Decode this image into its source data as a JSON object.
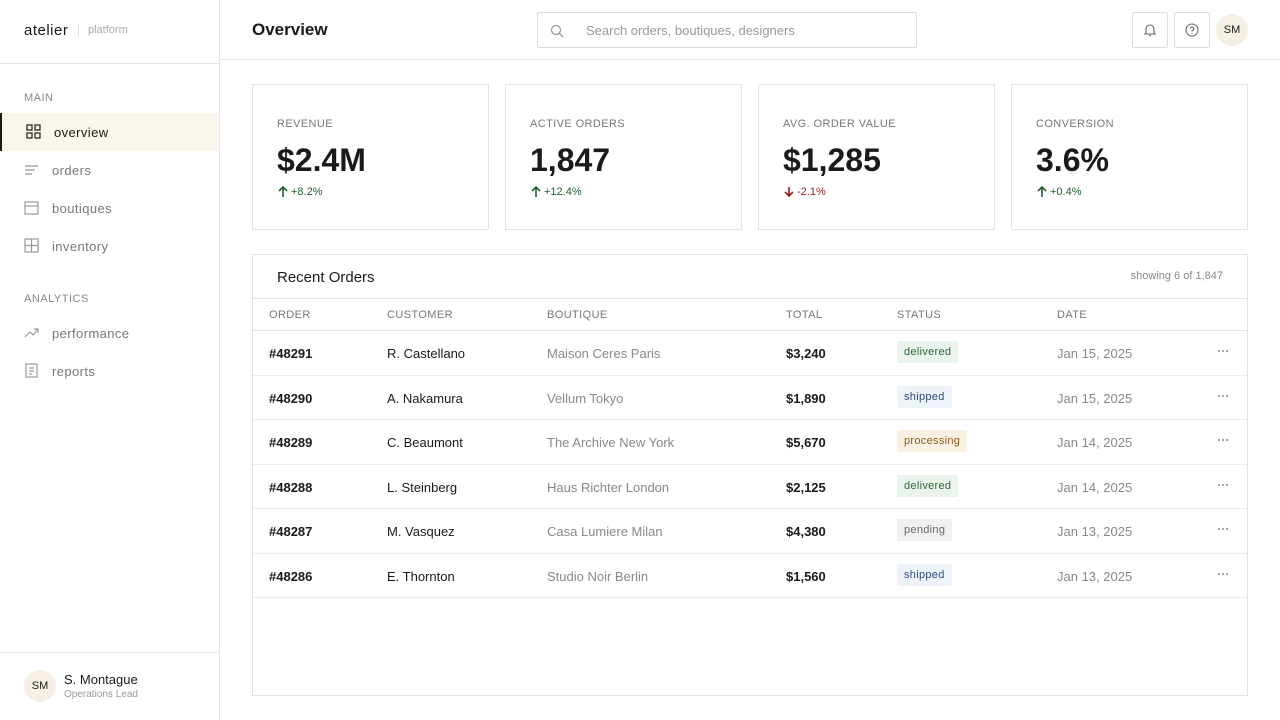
{
  "sidebar": {
    "brand": "atelier",
    "brand_sub": "platform",
    "sections": [
      {
        "label": "MAIN",
        "items": [
          "overview",
          "orders",
          "boutiques",
          "inventory"
        ]
      },
      {
        "label": "ANALYTICS",
        "items": [
          "performance",
          "reports"
        ]
      }
    ],
    "user": {
      "initials": "SM",
      "name": "S. Montague",
      "role": "Operations Lead"
    }
  },
  "header": {
    "title": "Overview",
    "search_placeholder": "Search orders, boutiques, designers",
    "avatar": "SM"
  },
  "kpis": [
    {
      "label": "REVENUE",
      "value": "$2.4M",
      "change": "+8.2%"
    },
    {
      "label": "ACTIVE ORDERS",
      "value": "1,847",
      "change": "+12.4%"
    },
    {
      "label": "AVG. ORDER VALUE",
      "value": "$1,285",
      "change": "-2.1%"
    },
    {
      "label": "CONVERSION",
      "value": "3.6%",
      "change": "+0.4%"
    }
  ],
  "orders": {
    "title": "Recent Orders",
    "count": "showing 6 of 1,847",
    "columns": [
      "ORDER",
      "CUSTOMER",
      "BOUTIQUE",
      "TOTAL",
      "STATUS",
      "DATE"
    ],
    "rows": [
      [
        "#48291",
        "R. Castellano",
        "Maison Ceres Paris",
        "$3,240",
        "delivered",
        "Jan 15, 2025"
      ],
      [
        "#48290",
        "A. Nakamura",
        "Vellum Tokyo",
        "$1,890",
        "shipped",
        "Jan 15, 2025"
      ],
      [
        "#48289",
        "C. Beaumont",
        "The Archive New York",
        "$5,670",
        "processing",
        "Jan 14, 2025"
      ],
      [
        "#48288",
        "L. Steinberg",
        "Haus Richter London",
        "$2,125",
        "delivered",
        "Jan 14, 2025"
      ],
      [
        "#48287",
        "M. Vasquez",
        "Casa Lumiere Milan",
        "$4,380",
        "pending",
        "Jan 13, 2025"
      ],
      [
        "#48286",
        "E. Thornton",
        "Studio Noir Berlin",
        "$1,560",
        "shipped",
        "Jan 13, 2025"
      ]
    ]
  }
}
